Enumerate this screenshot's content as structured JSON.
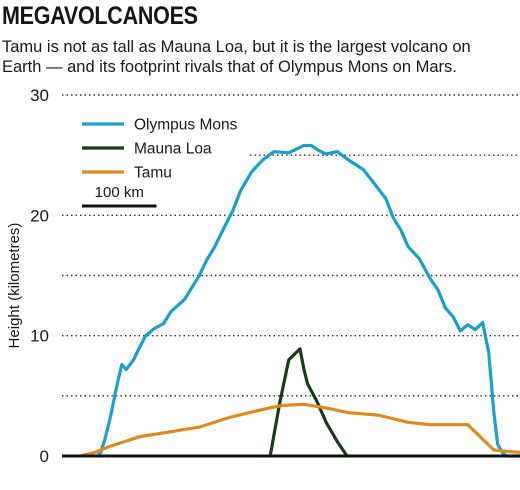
{
  "header": {
    "title": "MEGAVOLCANOES",
    "subtitle_line1": "Tamu is not as tall as Mauna Loa, but it is the largest volcano on",
    "subtitle_line2": "Earth — and its footprint rivals that of Olympus Mons on Mars."
  },
  "chart_data": {
    "type": "line",
    "xlabel": "",
    "ylabel": "Height (kilometres)",
    "ylim": [
      0,
      30
    ],
    "yticks": [
      "0",
      "10",
      "20",
      "30"
    ],
    "grid": "horizontal dotted",
    "legend_position": "top-left",
    "scale_bar_label": "100 km",
    "scale_bar_km": 100,
    "x_units": "km",
    "xlim": [
      0,
      590
    ],
    "series": [
      {
        "name": "Olympus Mons",
        "color": "#1a9fcf",
        "x": [
          23,
          28,
          33,
          40,
          50,
          56,
          62,
          67,
          72,
          78,
          88,
          100,
          112,
          122,
          131,
          140,
          150,
          160,
          170,
          180,
          195,
          205,
          215,
          230,
          245,
          260,
          280,
          300,
          310,
          320,
          330,
          345,
          360,
          380,
          395,
          410,
          420,
          430,
          440,
          455,
          470,
          480,
          490,
          500,
          510,
          520,
          530,
          540,
          548,
          555,
          560,
          566,
          572,
          580,
          590
        ],
        "y": [
          0,
          0.3,
          1.3,
          3,
          6,
          7.6,
          7.2,
          7.6,
          8,
          8.8,
          10,
          10.6,
          11,
          12,
          12.5,
          13,
          14,
          15,
          16.3,
          17.3,
          19.2,
          20.4,
          22,
          23.6,
          24.6,
          25.3,
          25.2,
          25.8,
          25.8,
          25.4,
          25.1,
          25.3,
          24.6,
          23.8,
          22.6,
          21.4,
          19.8,
          18.8,
          17.4,
          16.4,
          14.7,
          13.8,
          12.3,
          11.6,
          10.4,
          10.9,
          10.5,
          11.1,
          8.6,
          3.6,
          1,
          0.3,
          0,
          0,
          0
        ]
      },
      {
        "name": "Mauna Loa",
        "color": "#173d17",
        "x": [
          255,
          268,
          280,
          295,
          300,
          305,
          318,
          330,
          345,
          358
        ],
        "y": [
          0,
          4.5,
          8,
          8.9,
          7.3,
          6,
          4.5,
          2.8,
          1.2,
          0
        ]
      },
      {
        "name": "Tamu",
        "color": "#e08a1e",
        "x": [
          0,
          10,
          20,
          40,
          80,
          120,
          160,
          200,
          240,
          270,
          300,
          330,
          360,
          400,
          440,
          470,
          500,
          520,
          540,
          555,
          570,
          590
        ],
        "y": [
          0,
          0.15,
          0.3,
          0.8,
          1.6,
          2,
          2.4,
          3.2,
          3.8,
          4.2,
          4.3,
          4,
          3.6,
          3.4,
          2.8,
          2.6,
          2.6,
          2.6,
          1.4,
          0.5,
          0.4,
          0.3
        ]
      }
    ]
  }
}
